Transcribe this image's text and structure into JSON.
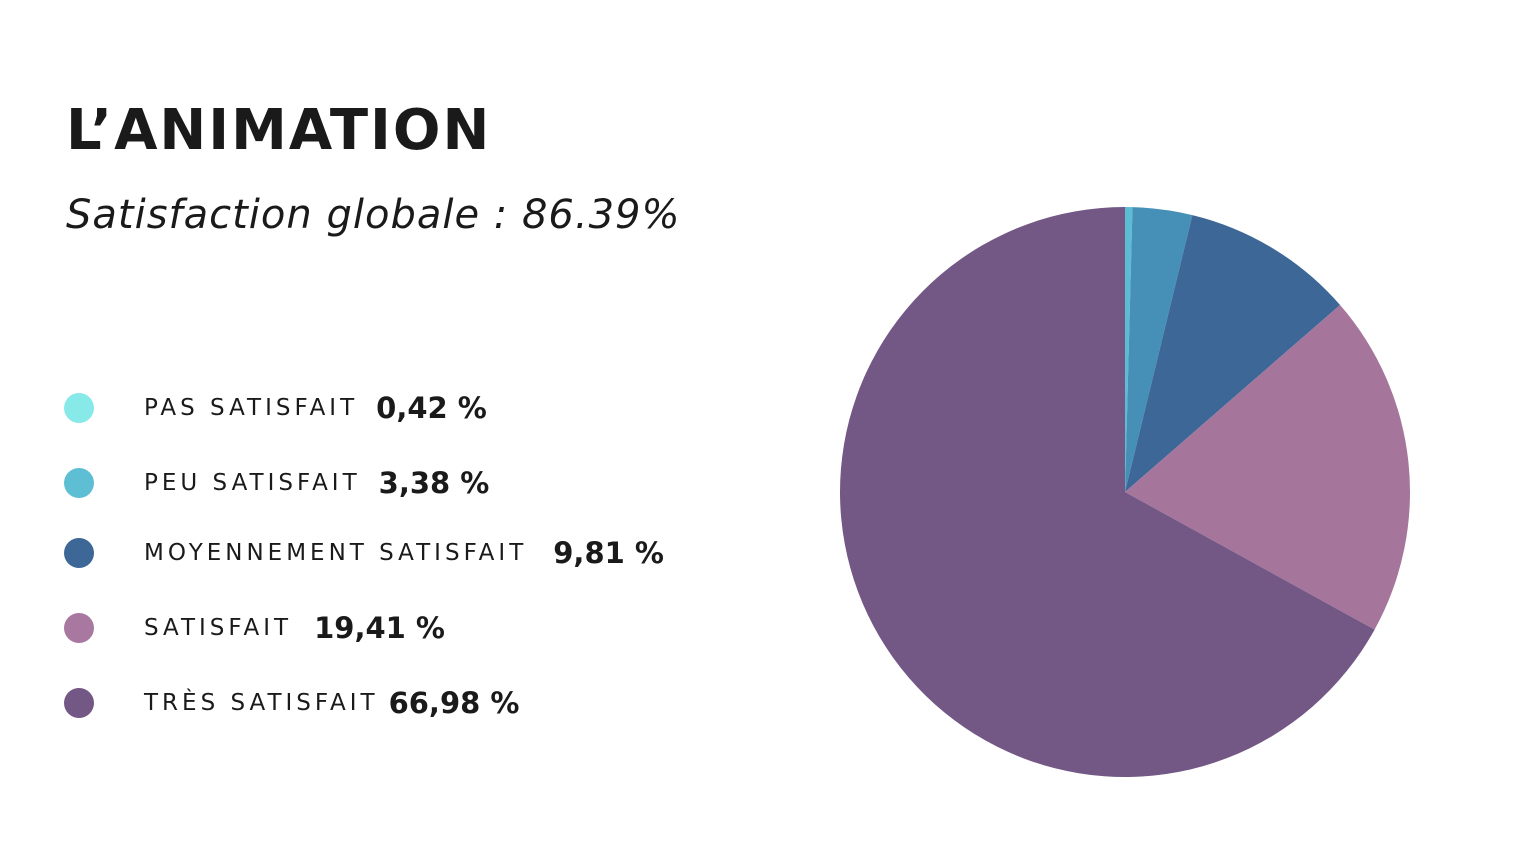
{
  "chart_data": {
    "type": "pie",
    "title": "L’ANIMATION",
    "subtitle": "Satisfaction globale : 86.39%",
    "legend_position": "left",
    "slices": [
      {
        "label": "PAS SATISFAIT",
        "value": 0.42,
        "value_label": "0,42 %",
        "color": "#5bbcd4",
        "legend_color": "#88eae8"
      },
      {
        "label": "PEU SATISFAIT",
        "value": 3.38,
        "value_label": "3,38 %",
        "color": "#4690b8",
        "legend_color": "#5ebed4"
      },
      {
        "label": "MOYENNEMENT SATISFAIT",
        "value": 9.81,
        "value_label": "9,81 %",
        "color": "#3c6796",
        "legend_color": "#3c6796"
      },
      {
        "label": "SATISFAIT",
        "value": 19.41,
        "value_label": "19,41 %",
        "color": "#a5759b",
        "legend_color": "#a878a0"
      },
      {
        "label": "TRÈS SATISFAIT",
        "value": 66.98,
        "value_label": "66,98 %",
        "color": "#735785",
        "legend_color": "#735785"
      }
    ]
  }
}
